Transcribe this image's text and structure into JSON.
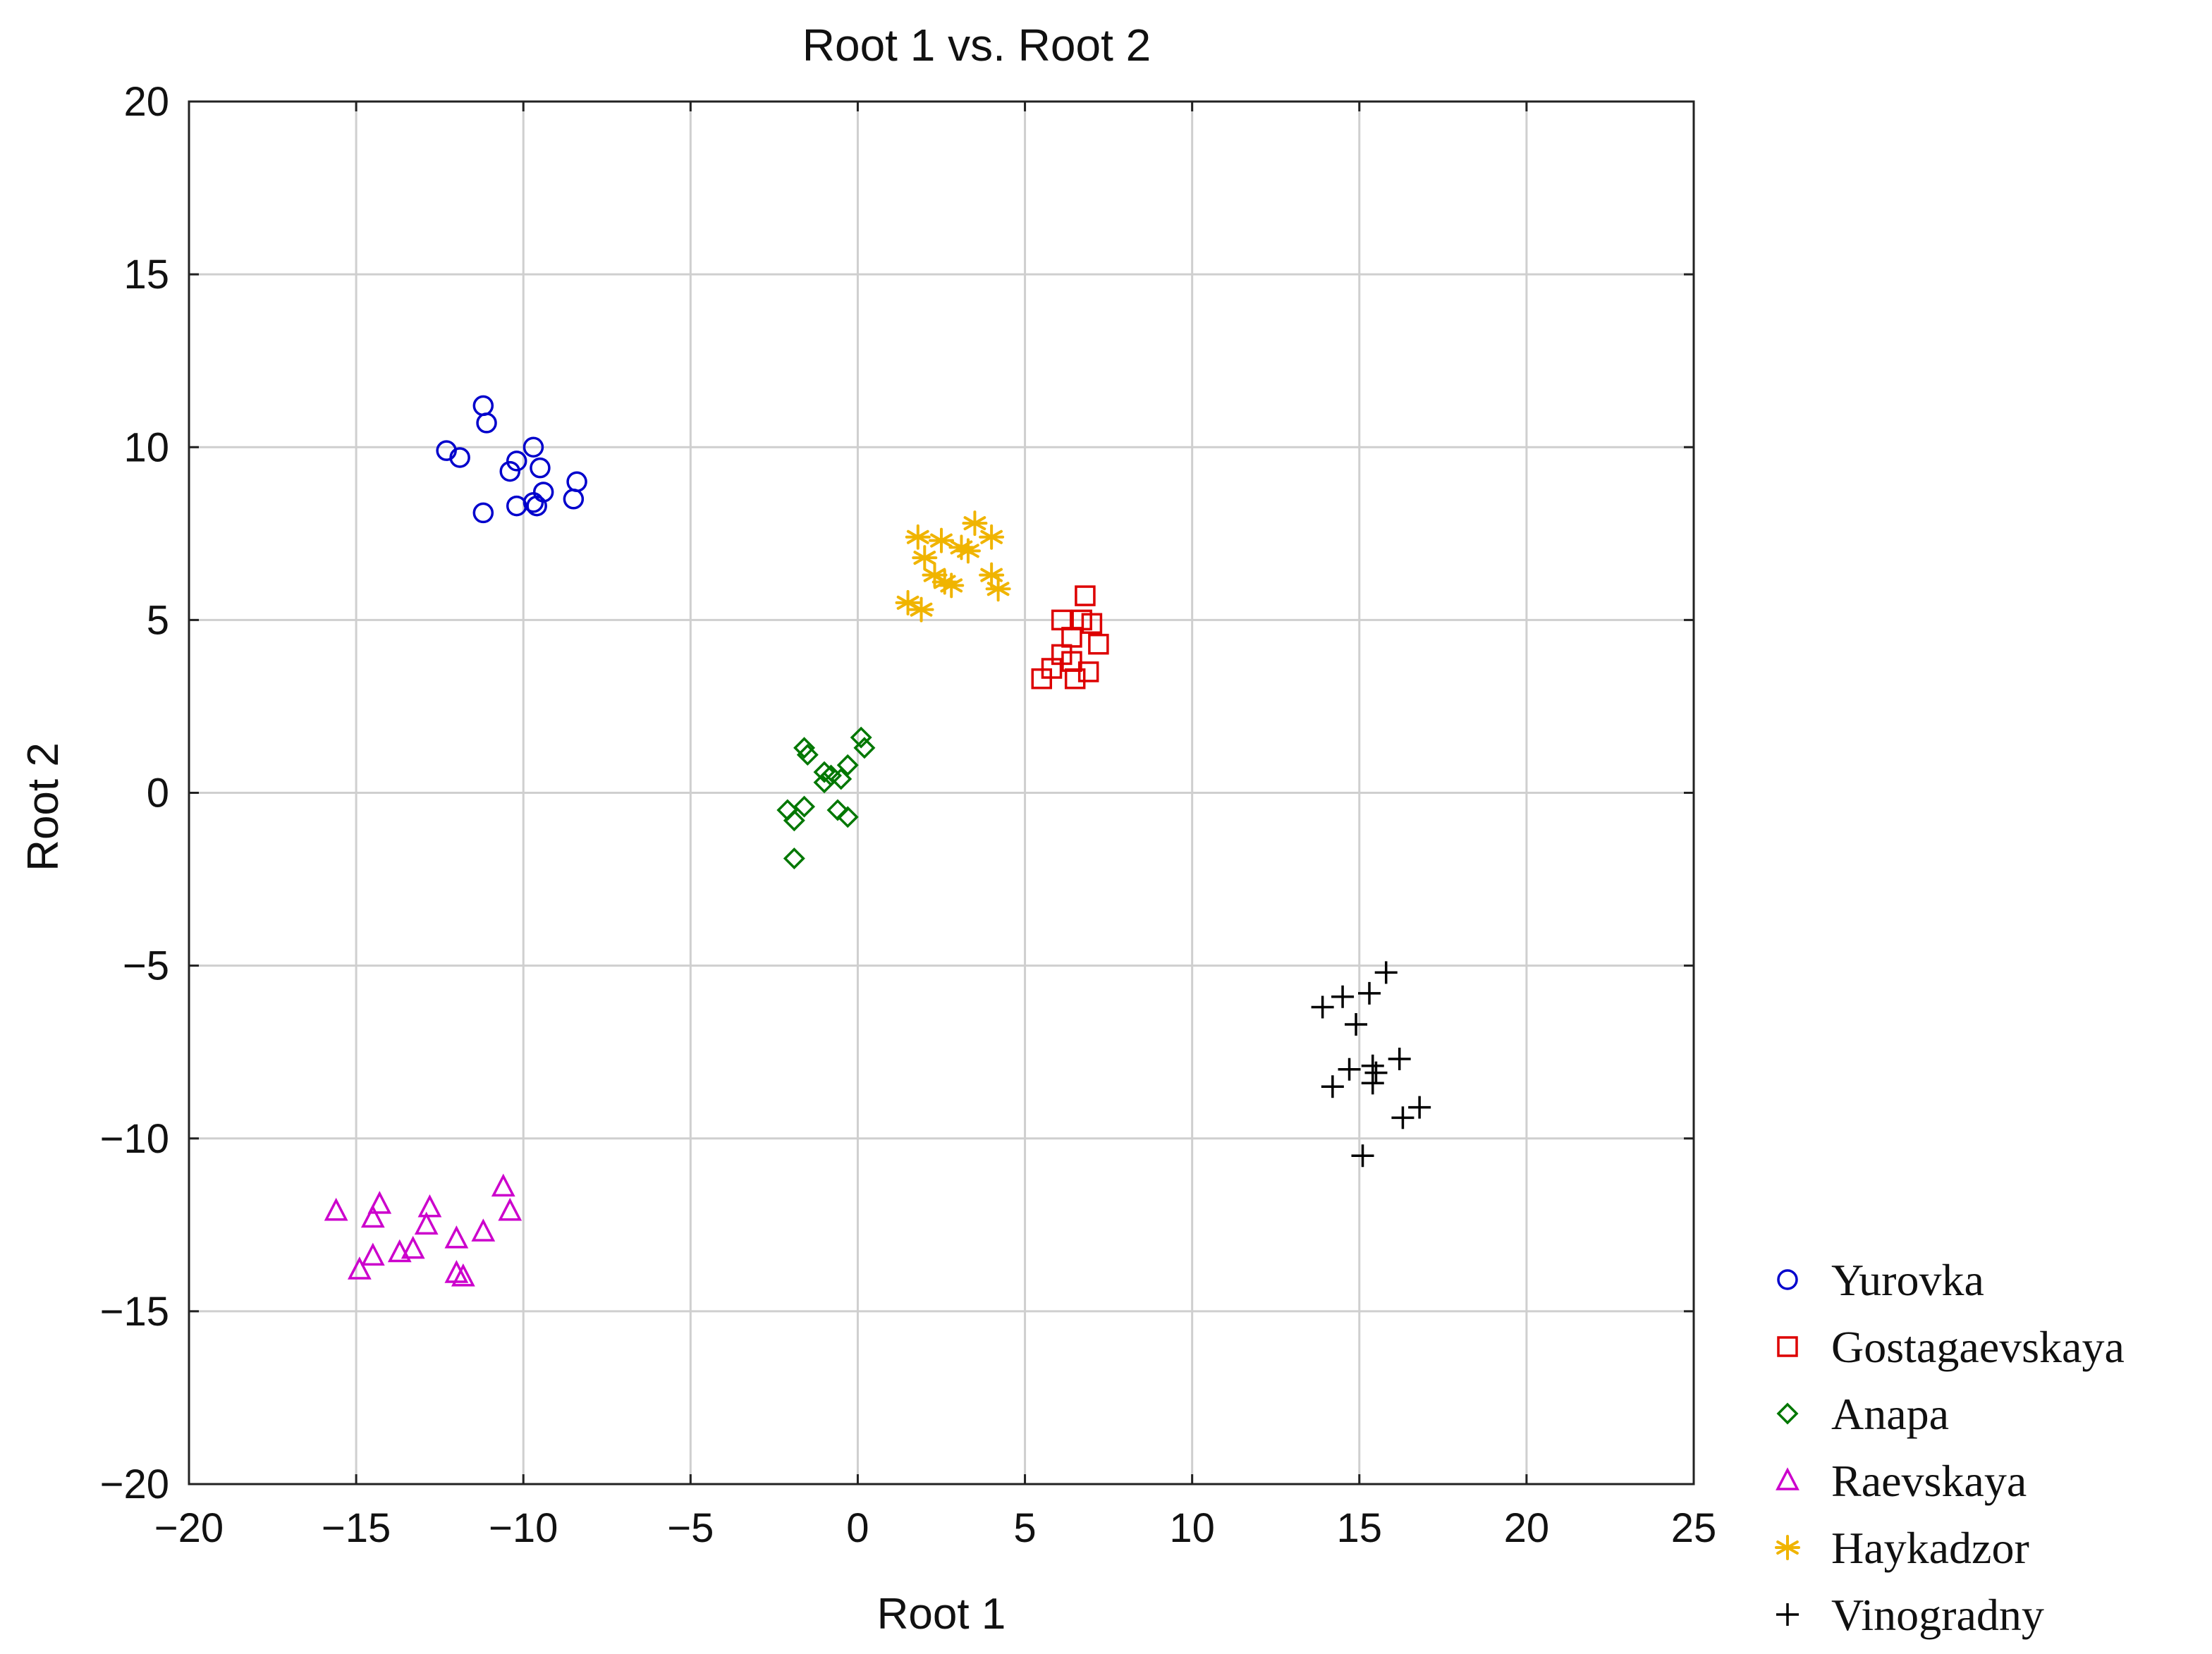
{
  "chart_data": {
    "type": "scatter",
    "title": "Root 1 vs. Root 2",
    "xlabel": "Root 1",
    "ylabel": "Root 2",
    "xlim": [
      -20,
      25
    ],
    "ylim": [
      -20,
      20
    ],
    "xticks": [
      -20,
      -15,
      -10,
      -5,
      0,
      5,
      10,
      15,
      20,
      25
    ],
    "yticks": [
      -20,
      -15,
      -10,
      -5,
      0,
      5,
      10,
      15,
      20
    ],
    "xtick_labels": [
      "−20",
      "−15",
      "−10",
      "−5",
      "0",
      "5",
      "10",
      "15",
      "20",
      "25"
    ],
    "ytick_labels": [
      "−20",
      "−15",
      "−10",
      "−5",
      "0",
      "5",
      "10",
      "15",
      "20"
    ],
    "grid": true,
    "legend_position": "bottom-right outside",
    "series": [
      {
        "name": "Yurovka",
        "marker": "circle",
        "color": "#0000cc",
        "points": [
          [
            -11.2,
            11.2
          ],
          [
            -11.1,
            10.7
          ],
          [
            -12.3,
            9.9
          ],
          [
            -11.9,
            9.7
          ],
          [
            -10.4,
            9.3
          ],
          [
            -10.2,
            9.6
          ],
          [
            -9.7,
            10.0
          ],
          [
            -9.5,
            9.4
          ],
          [
            -8.4,
            9.0
          ],
          [
            -9.4,
            8.7
          ],
          [
            -8.5,
            8.5
          ],
          [
            -9.6,
            8.3
          ],
          [
            -10.2,
            8.3
          ],
          [
            -11.2,
            8.1
          ],
          [
            -9.7,
            8.4
          ]
        ]
      },
      {
        "name": "Gostagaevskaya",
        "marker": "square",
        "color": "#dd0000",
        "points": [
          [
            6.8,
            5.7
          ],
          [
            6.1,
            5.0
          ],
          [
            6.7,
            5.0
          ],
          [
            7.0,
            4.9
          ],
          [
            6.4,
            4.5
          ],
          [
            7.2,
            4.3
          ],
          [
            6.1,
            4.0
          ],
          [
            6.4,
            3.8
          ],
          [
            5.8,
            3.6
          ],
          [
            6.9,
            3.5
          ],
          [
            5.5,
            3.3
          ],
          [
            6.5,
            3.3
          ]
        ]
      },
      {
        "name": "Anapa",
        "marker": "diamond",
        "color": "#007700",
        "points": [
          [
            -1.6,
            1.3
          ],
          [
            -1.5,
            1.1
          ],
          [
            0.1,
            1.6
          ],
          [
            0.2,
            1.3
          ],
          [
            -0.3,
            0.8
          ],
          [
            -1.0,
            0.6
          ],
          [
            -0.8,
            0.5
          ],
          [
            -0.5,
            0.4
          ],
          [
            -1.0,
            0.3
          ],
          [
            -1.6,
            -0.4
          ],
          [
            -2.1,
            -0.5
          ],
          [
            -1.9,
            -0.8
          ],
          [
            -0.6,
            -0.5
          ],
          [
            -0.3,
            -0.7
          ],
          [
            -1.9,
            -1.9
          ]
        ]
      },
      {
        "name": "Raevskaya",
        "marker": "triangle",
        "color": "#cc00cc",
        "points": [
          [
            -10.6,
            -11.4
          ],
          [
            -14.3,
            -11.9
          ],
          [
            -15.6,
            -12.1
          ],
          [
            -12.8,
            -12.0
          ],
          [
            -10.4,
            -12.1
          ],
          [
            -14.5,
            -12.3
          ],
          [
            -12.9,
            -12.5
          ],
          [
            -11.2,
            -12.7
          ],
          [
            -12.0,
            -12.9
          ],
          [
            -13.3,
            -13.2
          ],
          [
            -13.7,
            -13.3
          ],
          [
            -14.5,
            -13.4
          ],
          [
            -14.9,
            -13.8
          ],
          [
            -12.0,
            -13.9
          ],
          [
            -11.8,
            -14.0
          ]
        ]
      },
      {
        "name": "Haykadzor",
        "marker": "asterisk",
        "color": "#f0b400",
        "points": [
          [
            3.5,
            7.8
          ],
          [
            1.8,
            7.4
          ],
          [
            2.5,
            7.3
          ],
          [
            3.1,
            7.1
          ],
          [
            4.0,
            7.4
          ],
          [
            3.3,
            7.0
          ],
          [
            2.0,
            6.8
          ],
          [
            2.3,
            6.3
          ],
          [
            2.6,
            6.1
          ],
          [
            4.0,
            6.3
          ],
          [
            4.2,
            5.9
          ],
          [
            2.8,
            6.0
          ],
          [
            1.5,
            5.5
          ],
          [
            1.9,
            5.3
          ]
        ]
      },
      {
        "name": "Vinogradny",
        "marker": "plus",
        "color": "#000000",
        "points": [
          [
            15.8,
            -5.2
          ],
          [
            15.3,
            -5.8
          ],
          [
            14.5,
            -5.9
          ],
          [
            13.9,
            -6.2
          ],
          [
            14.9,
            -6.7
          ],
          [
            16.2,
            -7.7
          ],
          [
            15.4,
            -7.9
          ],
          [
            14.7,
            -8.0
          ],
          [
            15.5,
            -8.1
          ],
          [
            14.2,
            -8.5
          ],
          [
            15.4,
            -8.4
          ],
          [
            16.8,
            -9.1
          ],
          [
            16.3,
            -9.4
          ],
          [
            15.1,
            -10.5
          ]
        ]
      }
    ]
  }
}
